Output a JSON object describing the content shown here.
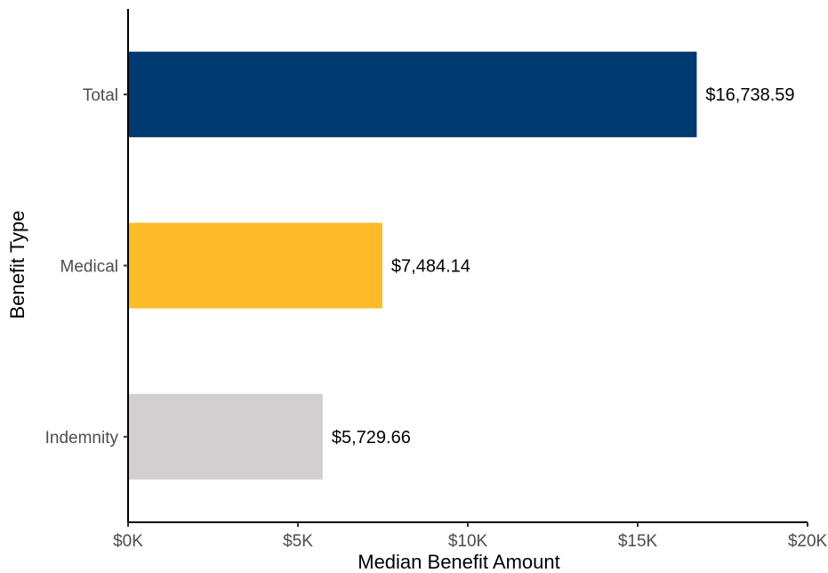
{
  "chart_data": {
    "type": "bar",
    "orientation": "horizontal",
    "categories": [
      "Total",
      "Medical",
      "Indemnity"
    ],
    "values": [
      16738.59,
      7484.14,
      5729.66
    ],
    "data_labels": [
      "$16,738.59",
      "$7,484.14",
      "$5,729.66"
    ],
    "colors": [
      "#003A70",
      "#FDBB29",
      "#D1CFD0"
    ],
    "xlabel": "Median Benefit Amount",
    "ylabel": "Benefit Type",
    "xlim": [
      0,
      20000
    ],
    "xticks": [
      0,
      5000,
      10000,
      15000,
      20000
    ],
    "xtick_labels": [
      "$0K",
      "$5K",
      "$10K",
      "$15K",
      "$20K"
    ],
    "grid": false,
    "legend": "none"
  }
}
